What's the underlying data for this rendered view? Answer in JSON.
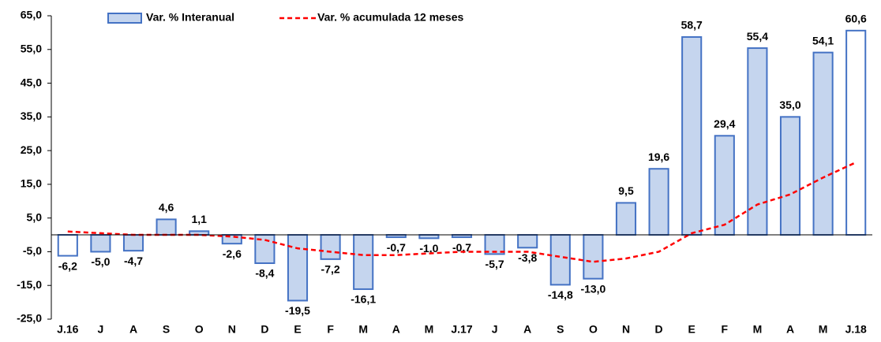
{
  "chart_data": {
    "type": "bar",
    "categories": [
      "J.16",
      "J",
      "A",
      "S",
      "O",
      "N",
      "D",
      "E",
      "F",
      "M",
      "A",
      "M",
      "J.17",
      "J",
      "A",
      "S",
      "O",
      "N",
      "D",
      "E",
      "F",
      "M",
      "A",
      "M",
      "J.18"
    ],
    "series": [
      {
        "name": "Var. % Interanual",
        "type": "bar",
        "color": "#c5d5ee",
        "edge_color": "#4472c4",
        "point_colors": [
          "#ffffff",
          "#c5d5ee",
          "#c5d5ee",
          "#c5d5ee",
          "#c5d5ee",
          "#c5d5ee",
          "#c5d5ee",
          "#c5d5ee",
          "#c5d5ee",
          "#c5d5ee",
          "#c5d5ee",
          "#c5d5ee",
          "#c5d5ee",
          "#c5d5ee",
          "#c5d5ee",
          "#c5d5ee",
          "#c5d5ee",
          "#c5d5ee",
          "#c5d5ee",
          "#c5d5ee",
          "#c5d5ee",
          "#c5d5ee",
          "#c5d5ee",
          "#c5d5ee",
          "#ffffff"
        ],
        "values": [
          -6.2,
          -5.0,
          -4.7,
          4.6,
          1.1,
          -2.6,
          -8.4,
          -19.5,
          -7.2,
          -16.1,
          -0.7,
          -1.0,
          -0.7,
          -5.7,
          -3.8,
          -14.8,
          -13.0,
          9.5,
          19.6,
          58.7,
          29.4,
          55.4,
          35.0,
          54.1,
          60.6
        ],
        "value_labels": [
          "-6,2",
          "-5,0",
          "-4,7",
          "4,6",
          "1,1",
          "-2,6",
          "-8,4",
          "-19,5",
          "-7,2",
          "-16,1",
          "-0,7",
          "-1,0",
          "-0,7",
          "-5,7",
          "-3,8",
          "-14,8",
          "-13,0",
          "9,5",
          "19,6",
          "58,7",
          "29,4",
          "55,4",
          "35,0",
          "54,1",
          "60,6"
        ]
      },
      {
        "name": "Var. % acumulada 12 meses",
        "type": "line",
        "color": "#ff0000",
        "dashed": true,
        "values": [
          1.0,
          0.5,
          0.0,
          0.0,
          0.0,
          -0.5,
          -1.5,
          -4.0,
          -5.0,
          -6.0,
          -6.0,
          -5.5,
          -5.0,
          -5.0,
          -5.0,
          -6.5,
          -8.0,
          -7.0,
          -5.0,
          0.5,
          3.0,
          9.0,
          12.0,
          17.0,
          21.5
        ]
      }
    ],
    "ylim": [
      -25,
      65
    ],
    "yticks": [
      {
        "value": 65,
        "label": "65,0"
      },
      {
        "value": 55,
        "label": "55,0"
      },
      {
        "value": 45,
        "label": "45,0"
      },
      {
        "value": 35,
        "label": "35,0"
      },
      {
        "value": 25,
        "label": "25,0"
      },
      {
        "value": 15,
        "label": "15,0"
      },
      {
        "value": 5,
        "label": "5,0"
      },
      {
        "value": -5,
        "label": "-5,0"
      },
      {
        "value": -15,
        "label": "-15,0"
      },
      {
        "value": -25,
        "label": "-25,0"
      }
    ],
    "grid": false
  }
}
